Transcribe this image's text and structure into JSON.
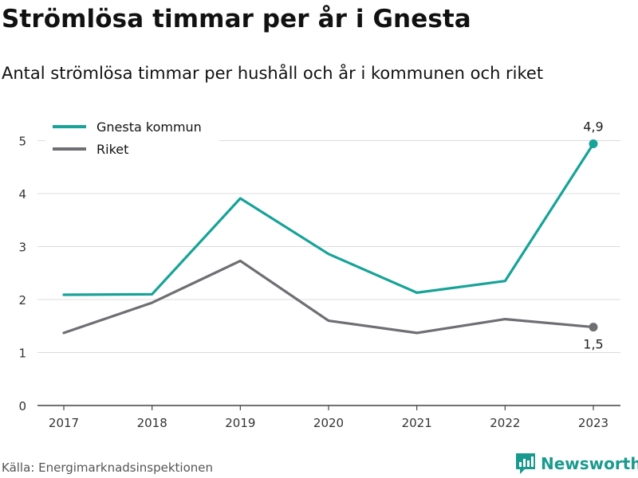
{
  "title": "Strömlösa timmar per år i Gnesta",
  "subtitle": "Antal strömlösa timmar per hushåll och år i kommunen och riket",
  "source": "Källa: Energimarknadsinspektionen",
  "brand": {
    "name": "Newsworthy",
    "color": "#1a9a8f",
    "icon": "newsworthy-logo-icon"
  },
  "chart_data": {
    "type": "line",
    "x": [
      "2017",
      "2018",
      "2019",
      "2020",
      "2021",
      "2022",
      "2023"
    ],
    "ylim": [
      0,
      5.4
    ],
    "yticks": [
      "0",
      "1",
      "2",
      "3",
      "4",
      "5"
    ],
    "grid": true,
    "legend_position": "top-left",
    "series": [
      {
        "name": "Gnesta kommun",
        "color": "#17a398",
        "values": [
          2.09,
          2.1,
          3.91,
          2.86,
          2.13,
          2.35,
          4.94
        ],
        "end_label": "4,9"
      },
      {
        "name": "Riket",
        "color": "#6e6e73",
        "values": [
          1.37,
          1.94,
          2.73,
          1.6,
          1.37,
          1.63,
          1.48
        ],
        "end_label": "1,5"
      }
    ]
  }
}
